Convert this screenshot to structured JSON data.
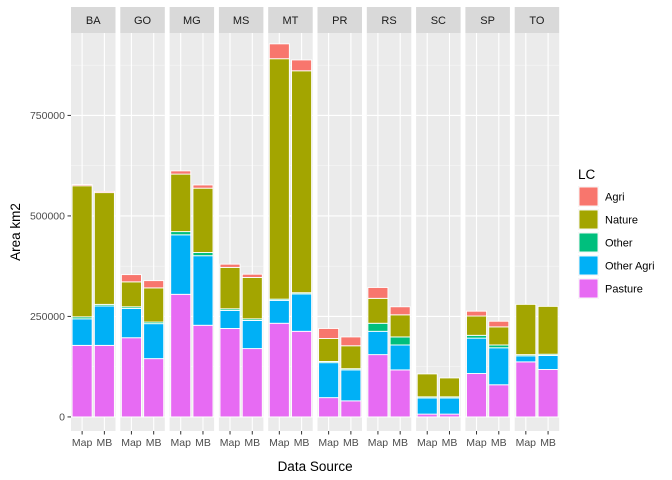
{
  "chart_data": {
    "type": "bar",
    "stacked": true,
    "facet_by": "state",
    "facets": [
      "BA",
      "GO",
      "MG",
      "MS",
      "MT",
      "PR",
      "RS",
      "SC",
      "SP",
      "TO"
    ],
    "categories": [
      "Map",
      "MB"
    ],
    "xlabel": "Data Source",
    "ylabel": "Area km2",
    "ylim": [
      -35000,
      955000
    ],
    "yticks": [
      0,
      250000,
      500000,
      750000
    ],
    "ytick_labels": [
      "0",
      "250000",
      "500000",
      "750000"
    ],
    "grid": true,
    "legend": {
      "title": "LC",
      "position": "right"
    },
    "series": [
      {
        "name": "Agri",
        "color": "#F8766D",
        "values": {
          "BA": [
            3000,
            3000
          ],
          "GO": [
            18000,
            18000
          ],
          "MG": [
            8000,
            8000
          ],
          "MS": [
            8000,
            8000
          ],
          "MT": [
            37000,
            27000
          ],
          "PR": [
            25000,
            22000
          ],
          "RS": [
            27000,
            20000
          ],
          "SC": [
            0,
            0
          ],
          "SP": [
            12000,
            14000
          ],
          "TO": [
            0,
            0
          ]
        }
      },
      {
        "name": "Nature",
        "color": "#A3A500",
        "values": {
          "BA": [
            326000,
            278000
          ],
          "GO": [
            62000,
            85000
          ],
          "MG": [
            143000,
            160000
          ],
          "MS": [
            103000,
            103000
          ],
          "MT": [
            598000,
            552000
          ],
          "PR": [
            57000,
            57000
          ],
          "RS": [
            62000,
            55000
          ],
          "SC": [
            57000,
            47000
          ],
          "SP": [
            48000,
            45000
          ],
          "TO": [
            125000,
            119000
          ]
        }
      },
      {
        "name": "Other",
        "color": "#00BF7D",
        "values": {
          "BA": [
            5000,
            4000
          ],
          "GO": [
            4000,
            4000
          ],
          "MG": [
            8000,
            8000
          ],
          "MS": [
            4000,
            4000
          ],
          "MT": [
            3000,
            3000
          ],
          "PR": [
            3000,
            3000
          ],
          "RS": [
            20000,
            20000
          ],
          "SC": [
            3000,
            3000
          ],
          "SP": [
            7000,
            7000
          ],
          "TO": [
            3000,
            3000
          ]
        }
      },
      {
        "name": "Other Agri",
        "color": "#00B0F6",
        "values": {
          "BA": [
            66000,
            98000
          ],
          "GO": [
            73000,
            87000
          ],
          "MG": [
            148000,
            173000
          ],
          "MS": [
            45000,
            70000
          ],
          "MT": [
            57000,
            93000
          ],
          "PR": [
            87000,
            77000
          ],
          "RS": [
            58000,
            62000
          ],
          "SC": [
            40000,
            40000
          ],
          "SP": [
            88000,
            92000
          ],
          "TO": [
            15000,
            35000
          ]
        }
      },
      {
        "name": "Pasture",
        "color": "#E76BF3",
        "values": {
          "BA": [
            178000,
            178000
          ],
          "GO": [
            197000,
            145000
          ],
          "MG": [
            305000,
            228000
          ],
          "MS": [
            220000,
            170000
          ],
          "MT": [
            233000,
            213000
          ],
          "PR": [
            48000,
            40000
          ],
          "RS": [
            155000,
            117000
          ],
          "SC": [
            7000,
            7000
          ],
          "SP": [
            108000,
            80000
          ],
          "TO": [
            137000,
            118000
          ]
        }
      }
    ]
  }
}
